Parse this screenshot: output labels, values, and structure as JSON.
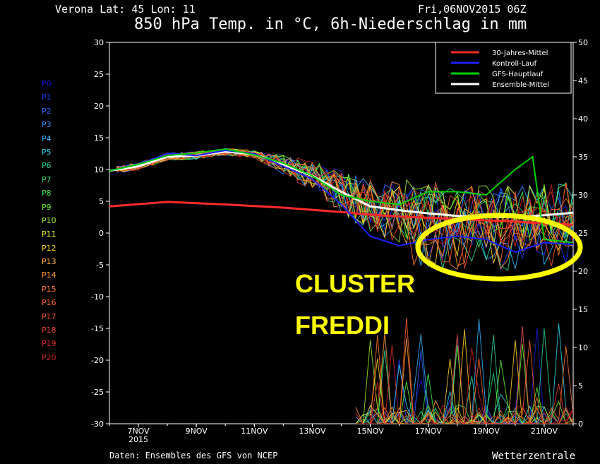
{
  "header": {
    "location": "Verona   Lat: 45 Lon: 11",
    "run": "Fri,06NOV2015 06Z",
    "title": "850 hPa Temp. in °C, 6h-Niederschlag in mm"
  },
  "footer": {
    "source": "Daten: Ensembles des GFS von NCEP",
    "brand": "Wetterzentrale"
  },
  "members": [
    {
      "label": "P0",
      "color": "#1a1adc"
    },
    {
      "label": "P1",
      "color": "#1e3cf0"
    },
    {
      "label": "P2",
      "color": "#2864ff"
    },
    {
      "label": "P3",
      "color": "#2a8cff"
    },
    {
      "label": "P4",
      "color": "#30b4ff"
    },
    {
      "label": "P5",
      "color": "#28d2e6"
    },
    {
      "label": "P6",
      "color": "#28d2a0"
    },
    {
      "label": "P7",
      "color": "#28dc78"
    },
    {
      "label": "P8",
      "color": "#3ce650"
    },
    {
      "label": "P9",
      "color": "#64f032"
    },
    {
      "label": "P10",
      "color": "#a0f028"
    },
    {
      "label": "P11",
      "color": "#e6f028"
    },
    {
      "label": "P12",
      "color": "#ffd228"
    },
    {
      "label": "P13",
      "color": "#ffb428"
    },
    {
      "label": "P14",
      "color": "#ff9628"
    },
    {
      "label": "P15",
      "color": "#ff7828"
    },
    {
      "label": "P16",
      "color": "#ff6428"
    },
    {
      "label": "P17",
      "color": "#f05028"
    },
    {
      "label": "P18",
      "color": "#e63c28"
    },
    {
      "label": "P19",
      "color": "#dc2828"
    },
    {
      "label": "P20",
      "color": "#c81e1e"
    }
  ],
  "chart_data": {
    "type": "line",
    "x_ticks": [
      {
        "day": 1,
        "label": "7NOV",
        "sub": "2015"
      },
      {
        "day": 3,
        "label": "9NOV",
        "sub": ""
      },
      {
        "day": 5,
        "label": "11NOV",
        "sub": ""
      },
      {
        "day": 7,
        "label": "13NOV",
        "sub": ""
      },
      {
        "day": 9,
        "label": "15NOV",
        "sub": ""
      },
      {
        "day": 11,
        "label": "17NOV",
        "sub": ""
      },
      {
        "day": 13,
        "label": "19NOV",
        "sub": ""
      },
      {
        "day": 15,
        "label": "21NOV",
        "sub": ""
      }
    ],
    "xlim_days": [
      0,
      16
    ],
    "ylim_left": [
      -30,
      30
    ],
    "ylim_right": [
      0,
      50
    ],
    "yticks_left": [
      30,
      25,
      20,
      15,
      10,
      5,
      0,
      -5,
      -10,
      -15,
      -20,
      -25,
      -30
    ],
    "yticks_right": [
      50,
      45,
      40,
      35,
      30,
      25,
      20,
      15,
      10,
      5,
      0
    ],
    "legend": [
      {
        "label": "30-Jahres-Mittel",
        "color": "#ff2a2a"
      },
      {
        "label": "Kontroll-Lauf",
        "color": "#2020ff"
      },
      {
        "label": "GFS-Hauptlauf",
        "color": "#00d000"
      },
      {
        "label": "Ensemble-Mittel",
        "color": "#ffffff"
      }
    ],
    "series": [
      {
        "name": "30-Jahres-Mittel",
        "color": "#ff2a2a",
        "x": [
          0,
          2,
          4,
          6,
          8,
          9,
          10,
          11,
          12,
          13,
          14,
          15,
          16
        ],
        "y": [
          4.2,
          4.9,
          4.5,
          4.0,
          3.3,
          2.9,
          2.6,
          2.4,
          2.2,
          2.0,
          1.8,
          1.5,
          1.3
        ]
      },
      {
        "name": "Ensemble-Mittel",
        "color": "#ffffff",
        "x": [
          0,
          1,
          2,
          3,
          4,
          5,
          6,
          7,
          8,
          9,
          10,
          11,
          12,
          13,
          14,
          15,
          16
        ],
        "y": [
          9.8,
          10.5,
          12.0,
          12.2,
          12.8,
          12.4,
          10.8,
          9.0,
          6.5,
          4.2,
          3.6,
          3.1,
          2.7,
          2.5,
          2.5,
          2.8,
          3.2
        ]
      },
      {
        "name": "Kontroll-Lauf",
        "color": "#2020ff",
        "x": [
          0,
          1,
          2,
          3,
          4,
          5,
          6,
          7,
          8,
          9,
          10,
          11,
          12,
          13,
          14,
          15,
          16
        ],
        "y": [
          9.8,
          10.8,
          12.5,
          12.2,
          13.0,
          12.5,
          10.5,
          8.5,
          4.5,
          -0.5,
          -2.0,
          -1.0,
          -0.5,
          -1.0,
          -3.0,
          -1.5,
          -1.8
        ]
      },
      {
        "name": "GFS-Hauptlauf",
        "color": "#00d000",
        "x": [
          0,
          1,
          2,
          3,
          4,
          5,
          6,
          7,
          8,
          9,
          10,
          11,
          12,
          13,
          14,
          14.6,
          15,
          16
        ],
        "y": [
          9.8,
          10.8,
          12.2,
          12.6,
          13.2,
          12.3,
          11.0,
          9.0,
          6.0,
          5.0,
          4.5,
          6.5,
          6.5,
          6.0,
          10.0,
          12.0,
          -1.0,
          -1.5
        ]
      }
    ],
    "annotation": {
      "text1": "CLUSTER",
      "text2": "FREDDI",
      "color": "#ffff00"
    }
  }
}
